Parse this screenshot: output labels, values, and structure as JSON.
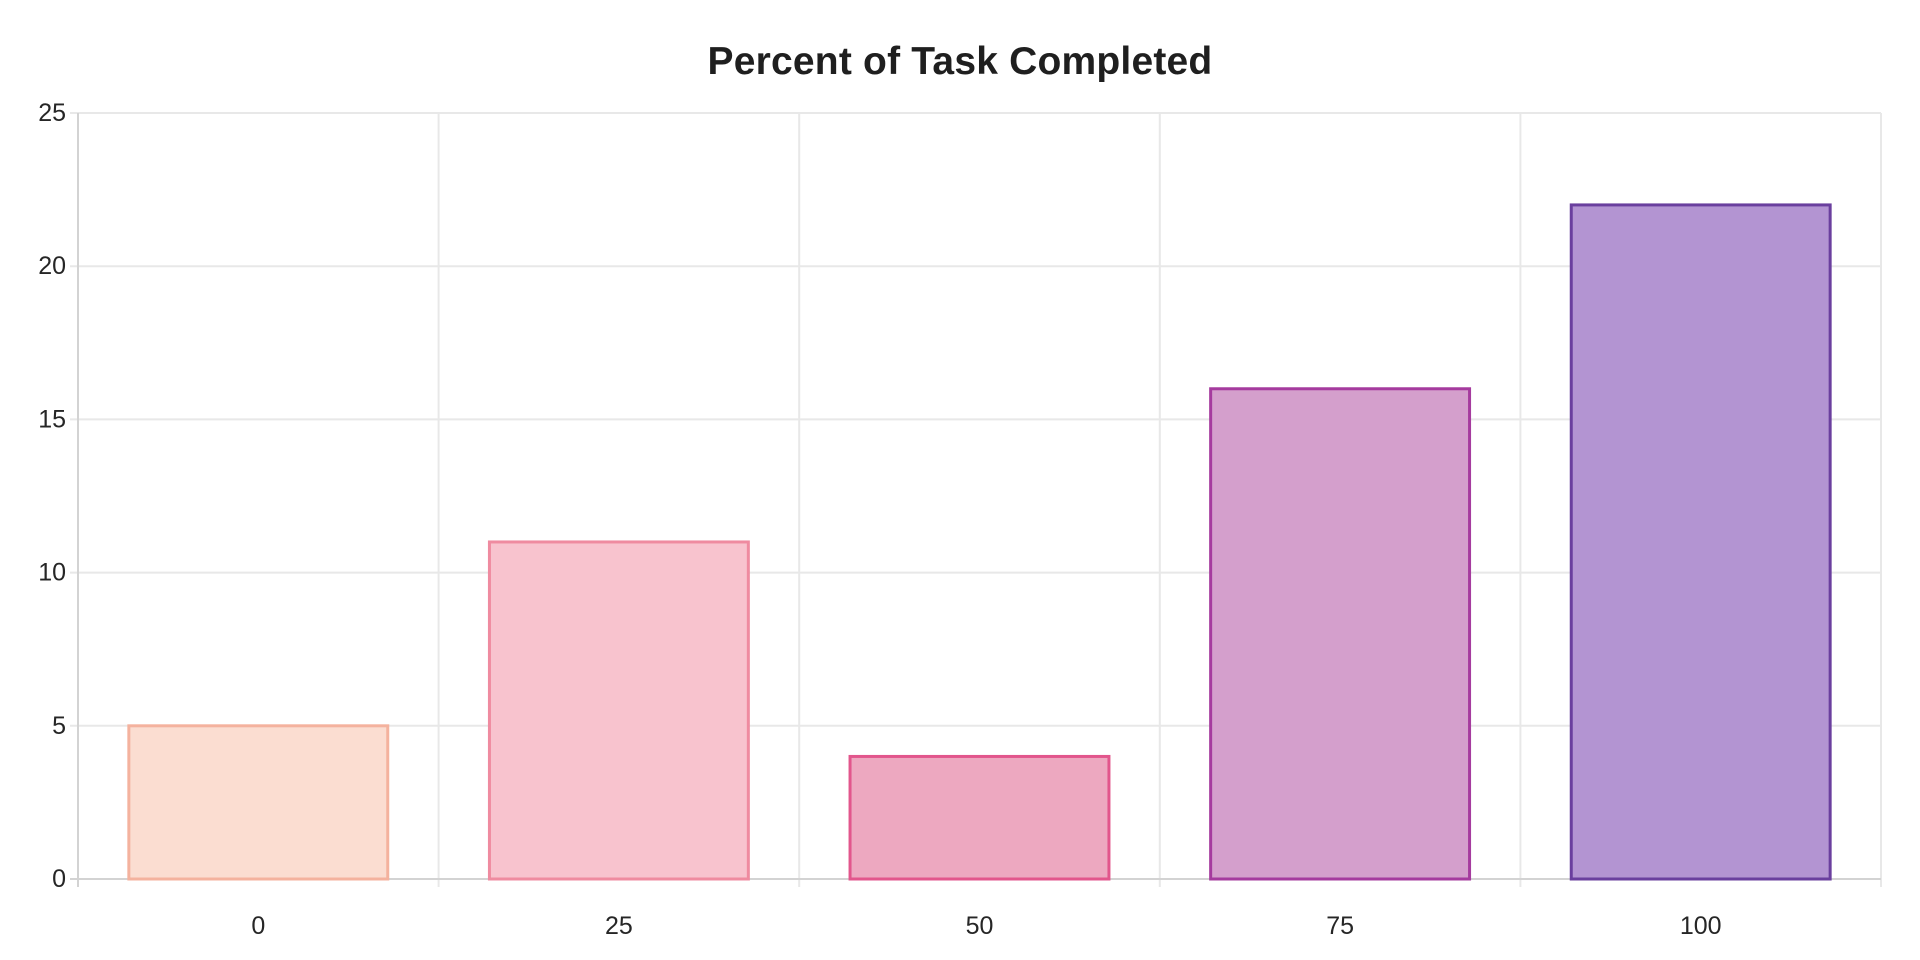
{
  "chart_data": {
    "type": "bar",
    "title": "Percent of Task Completed",
    "categories": [
      "0",
      "25",
      "50",
      "75",
      "100"
    ],
    "values": [
      5,
      11,
      4,
      16,
      22
    ],
    "xlabel": "",
    "ylabel": "",
    "ylim": [
      0,
      25
    ],
    "yticks": [
      0,
      5,
      10,
      15,
      20,
      25
    ],
    "grid": true,
    "legend": false,
    "colors": {
      "bar_fills": [
        "#fbddd1",
        "#f8c3ce",
        "#eda8c0",
        "#d49fcc",
        "#b394d2"
      ],
      "bar_borders": [
        "#f4b29e",
        "#ef8ba0",
        "#e2568c",
        "#a53b9e",
        "#6a3f9e"
      ],
      "gridline": "#e8e8e8",
      "axis": "#d3d3d3",
      "tick_text": "#262626",
      "title_text": "#1f1f1f"
    }
  }
}
